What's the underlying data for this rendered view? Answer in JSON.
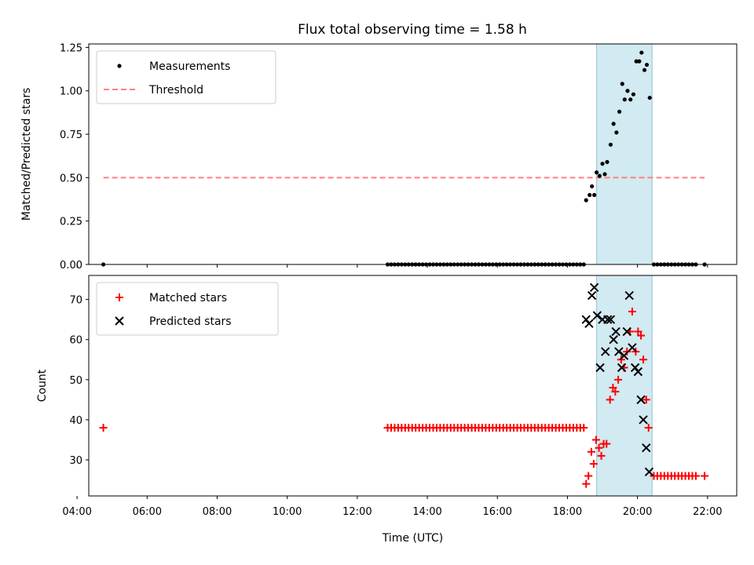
{
  "title": "Flux total observing time = 1.58 h",
  "colors": {
    "measurement": "#000000",
    "threshold": "#ff7f7f",
    "matched": "#ff0000",
    "predicted": "#000000",
    "span": "#add8e6"
  },
  "chart_data": [
    {
      "type": "scatter",
      "panel": "top",
      "ylabel": "Matched/Predicted stars",
      "xlabel": "",
      "xlim": [
        "04:20",
        "22:50"
      ],
      "ylim": [
        0,
        1.27
      ],
      "yticks": [
        0.0,
        0.25,
        0.5,
        0.75,
        1.0,
        1.25
      ],
      "ytick_labels": [
        "0.00",
        "0.25",
        "0.50",
        "0.75",
        "1.00",
        "1.25"
      ],
      "legend": {
        "placement": "upper left",
        "entries": [
          "Measurements",
          "Threshold"
        ]
      },
      "shaded_span": [
        "18:50",
        "20:25"
      ],
      "threshold": {
        "name": "Threshold",
        "y": 0.5,
        "x": [
          "04:45",
          "21:55"
        ],
        "style": "dashed"
      },
      "series": [
        {
          "name": "Measurements",
          "marker": "dot",
          "points": [
            [
              "04:45",
              0.0
            ],
            [
              "12:52",
              0.0
            ],
            [
              "12:58",
              0.0
            ],
            [
              "13:04",
              0.0
            ],
            [
              "13:10",
              0.0
            ],
            [
              "13:16",
              0.0
            ],
            [
              "13:22",
              0.0
            ],
            [
              "13:28",
              0.0
            ],
            [
              "13:34",
              0.0
            ],
            [
              "13:40",
              0.0
            ],
            [
              "13:46",
              0.0
            ],
            [
              "13:52",
              0.0
            ],
            [
              "13:58",
              0.0
            ],
            [
              "14:04",
              0.0
            ],
            [
              "14:10",
              0.0
            ],
            [
              "14:16",
              0.0
            ],
            [
              "14:22",
              0.0
            ],
            [
              "14:28",
              0.0
            ],
            [
              "14:34",
              0.0
            ],
            [
              "14:40",
              0.0
            ],
            [
              "14:46",
              0.0
            ],
            [
              "14:52",
              0.0
            ],
            [
              "14:58",
              0.0
            ],
            [
              "15:04",
              0.0
            ],
            [
              "15:10",
              0.0
            ],
            [
              "15:16",
              0.0
            ],
            [
              "15:22",
              0.0
            ],
            [
              "15:28",
              0.0
            ],
            [
              "15:34",
              0.0
            ],
            [
              "15:40",
              0.0
            ],
            [
              "15:46",
              0.0
            ],
            [
              "15:52",
              0.0
            ],
            [
              "15:58",
              0.0
            ],
            [
              "16:04",
              0.0
            ],
            [
              "16:10",
              0.0
            ],
            [
              "16:16",
              0.0
            ],
            [
              "16:22",
              0.0
            ],
            [
              "16:28",
              0.0
            ],
            [
              "16:34",
              0.0
            ],
            [
              "16:40",
              0.0
            ],
            [
              "16:46",
              0.0
            ],
            [
              "16:52",
              0.0
            ],
            [
              "16:58",
              0.0
            ],
            [
              "17:04",
              0.0
            ],
            [
              "17:10",
              0.0
            ],
            [
              "17:16",
              0.0
            ],
            [
              "17:22",
              0.0
            ],
            [
              "17:28",
              0.0
            ],
            [
              "17:34",
              0.0
            ],
            [
              "17:40",
              0.0
            ],
            [
              "17:46",
              0.0
            ],
            [
              "17:52",
              0.0
            ],
            [
              "17:58",
              0.0
            ],
            [
              "18:04",
              0.0
            ],
            [
              "18:10",
              0.0
            ],
            [
              "18:16",
              0.0
            ],
            [
              "18:22",
              0.0
            ],
            [
              "18:28",
              0.0
            ],
            [
              "18:32",
              0.37
            ],
            [
              "18:38",
              0.4
            ],
            [
              "18:42",
              0.45
            ],
            [
              "18:46",
              0.4
            ],
            [
              "18:50",
              0.53
            ],
            [
              "18:55",
              0.51
            ],
            [
              "19:00",
              0.58
            ],
            [
              "19:04",
              0.52
            ],
            [
              "19:08",
              0.59
            ],
            [
              "19:14",
              0.69
            ],
            [
              "19:19",
              0.81
            ],
            [
              "19:24",
              0.76
            ],
            [
              "19:29",
              0.88
            ],
            [
              "19:34",
              1.04
            ],
            [
              "19:38",
              0.95
            ],
            [
              "19:43",
              1.0
            ],
            [
              "19:48",
              0.95
            ],
            [
              "19:53",
              0.98
            ],
            [
              "19:58",
              1.17
            ],
            [
              "20:03",
              1.17
            ],
            [
              "20:07",
              1.22
            ],
            [
              "20:12",
              1.12
            ],
            [
              "20:16",
              1.15
            ],
            [
              "20:21",
              0.96
            ],
            [
              "20:28",
              0.0
            ],
            [
              "20:34",
              0.0
            ],
            [
              "20:40",
              0.0
            ],
            [
              "20:46",
              0.0
            ],
            [
              "20:52",
              0.0
            ],
            [
              "20:58",
              0.0
            ],
            [
              "21:04",
              0.0
            ],
            [
              "21:10",
              0.0
            ],
            [
              "21:16",
              0.0
            ],
            [
              "21:22",
              0.0
            ],
            [
              "21:28",
              0.0
            ],
            [
              "21:34",
              0.0
            ],
            [
              "21:40",
              0.0
            ],
            [
              "21:55",
              0.0
            ]
          ]
        }
      ]
    },
    {
      "type": "scatter",
      "panel": "bottom",
      "ylabel": "Count",
      "xlabel": "Time (UTC)",
      "xlim": [
        "04:20",
        "22:50"
      ],
      "ylim": [
        21,
        76
      ],
      "yticks": [
        30,
        40,
        50,
        60,
        70
      ],
      "ytick_labels": [
        "30",
        "40",
        "50",
        "60",
        "70"
      ],
      "xticks": [
        "04:00",
        "06:00",
        "08:00",
        "10:00",
        "12:00",
        "14:00",
        "16:00",
        "18:00",
        "20:00",
        "22:00"
      ],
      "legend": {
        "placement": "upper left",
        "entries": [
          "Matched stars",
          "Predicted stars"
        ]
      },
      "shaded_span": [
        "18:50",
        "20:25"
      ],
      "series": [
        {
          "name": "Matched stars",
          "marker": "plus",
          "points": [
            [
              "04:45",
              38
            ],
            [
              "12:52",
              38
            ],
            [
              "12:58",
              38
            ],
            [
              "13:04",
              38
            ],
            [
              "13:10",
              38
            ],
            [
              "13:16",
              38
            ],
            [
              "13:22",
              38
            ],
            [
              "13:28",
              38
            ],
            [
              "13:34",
              38
            ],
            [
              "13:40",
              38
            ],
            [
              "13:46",
              38
            ],
            [
              "13:52",
              38
            ],
            [
              "13:58",
              38
            ],
            [
              "14:04",
              38
            ],
            [
              "14:10",
              38
            ],
            [
              "14:16",
              38
            ],
            [
              "14:22",
              38
            ],
            [
              "14:28",
              38
            ],
            [
              "14:34",
              38
            ],
            [
              "14:40",
              38
            ],
            [
              "14:46",
              38
            ],
            [
              "14:52",
              38
            ],
            [
              "14:58",
              38
            ],
            [
              "15:04",
              38
            ],
            [
              "15:10",
              38
            ],
            [
              "15:16",
              38
            ],
            [
              "15:22",
              38
            ],
            [
              "15:28",
              38
            ],
            [
              "15:34",
              38
            ],
            [
              "15:40",
              38
            ],
            [
              "15:46",
              38
            ],
            [
              "15:52",
              38
            ],
            [
              "15:58",
              38
            ],
            [
              "16:04",
              38
            ],
            [
              "16:10",
              38
            ],
            [
              "16:16",
              38
            ],
            [
              "16:22",
              38
            ],
            [
              "16:28",
              38
            ],
            [
              "16:34",
              38
            ],
            [
              "16:40",
              38
            ],
            [
              "16:46",
              38
            ],
            [
              "16:52",
              38
            ],
            [
              "16:58",
              38
            ],
            [
              "17:04",
              38
            ],
            [
              "17:10",
              38
            ],
            [
              "17:16",
              38
            ],
            [
              "17:22",
              38
            ],
            [
              "17:28",
              38
            ],
            [
              "17:34",
              38
            ],
            [
              "17:40",
              38
            ],
            [
              "17:46",
              38
            ],
            [
              "17:52",
              38
            ],
            [
              "17:58",
              38
            ],
            [
              "18:04",
              38
            ],
            [
              "18:10",
              38
            ],
            [
              "18:16",
              38
            ],
            [
              "18:22",
              38
            ],
            [
              "18:28",
              38
            ],
            [
              "18:32",
              24
            ],
            [
              "18:36",
              26
            ],
            [
              "18:41",
              32
            ],
            [
              "18:45",
              29
            ],
            [
              "18:49",
              35
            ],
            [
              "18:54",
              33
            ],
            [
              "18:58",
              31
            ],
            [
              "19:02",
              34
            ],
            [
              "19:07",
              34
            ],
            [
              "19:13",
              45
            ],
            [
              "19:18",
              48
            ],
            [
              "19:22",
              47
            ],
            [
              "19:27",
              50
            ],
            [
              "19:32",
              55
            ],
            [
              "19:37",
              53
            ],
            [
              "19:42",
              57
            ],
            [
              "19:47",
              62
            ],
            [
              "19:51",
              67
            ],
            [
              "19:57",
              57
            ],
            [
              "20:01",
              62
            ],
            [
              "20:06",
              61
            ],
            [
              "20:10",
              55
            ],
            [
              "20:15",
              45
            ],
            [
              "20:19",
              38
            ],
            [
              "20:28",
              26
            ],
            [
              "20:34",
              26
            ],
            [
              "20:40",
              26
            ],
            [
              "20:46",
              26
            ],
            [
              "20:52",
              26
            ],
            [
              "20:58",
              26
            ],
            [
              "21:04",
              26
            ],
            [
              "21:10",
              26
            ],
            [
              "21:16",
              26
            ],
            [
              "21:22",
              26
            ],
            [
              "21:28",
              26
            ],
            [
              "21:34",
              26
            ],
            [
              "21:40",
              26
            ],
            [
              "21:55",
              26
            ]
          ]
        },
        {
          "name": "Predicted stars",
          "marker": "x",
          "points": [
            [
              "18:32",
              65
            ],
            [
              "18:37",
              64
            ],
            [
              "18:42",
              71
            ],
            [
              "18:46",
              73
            ],
            [
              "18:51",
              66
            ],
            [
              "18:56",
              53
            ],
            [
              "19:00",
              65
            ],
            [
              "19:05",
              57
            ],
            [
              "19:09",
              65
            ],
            [
              "19:14",
              65
            ],
            [
              "19:19",
              60
            ],
            [
              "19:23",
              62
            ],
            [
              "19:28",
              57
            ],
            [
              "19:33",
              53
            ],
            [
              "19:37",
              56
            ],
            [
              "19:42",
              62
            ],
            [
              "19:46",
              71
            ],
            [
              "19:51",
              58
            ],
            [
              "19:56",
              53
            ],
            [
              "20:01",
              52
            ],
            [
              "20:06",
              45
            ],
            [
              "20:10",
              40
            ],
            [
              "20:15",
              33
            ],
            [
              "20:20",
              27
            ]
          ]
        }
      ]
    }
  ]
}
